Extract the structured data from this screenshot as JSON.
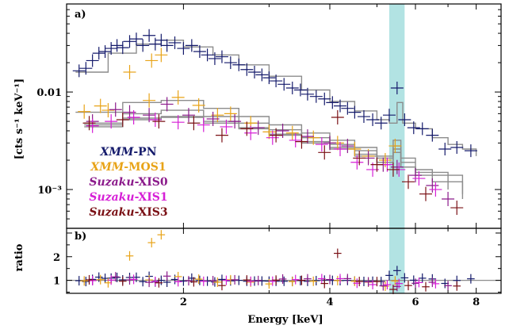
{
  "chart_data": [
    {
      "panel_label": "a)",
      "type": "scatter",
      "x_scale": "log",
      "y_scale": "log",
      "xlim": [
        1.15,
        9.0
      ],
      "ylim": [
        0.0004,
        0.08
      ],
      "ylabel": "[cts s⁻¹ keV⁻¹]",
      "ytick_labels": [
        "10⁻³",
        "0.01"
      ],
      "ytick_values": [
        0.001,
        0.01
      ],
      "highlight_band": {
        "x_range": [
          5.3,
          5.7
        ],
        "color": "#b2e3e3"
      },
      "legend": {
        "placement": "bottom-left",
        "entries": [
          {
            "mission": "XMM",
            "instrument": "-PN",
            "color": "#141a6b"
          },
          {
            "mission": "XMM",
            "instrument": "-MOS1",
            "color": "#e8a317"
          },
          {
            "mission": "Suzaku",
            "instrument": "-XIS0",
            "color": "#8b1a8b"
          },
          {
            "mission": "Suzaku",
            "instrument": "-XIS1",
            "color": "#d61fd6"
          },
          {
            "mission": "Suzaku",
            "instrument": "-XIS3",
            "color": "#7a1015"
          }
        ]
      },
      "series": [
        {
          "color": "#141a6b",
          "points": [
            [
              1.22,
              0.0165
            ],
            [
              1.26,
              0.0175
            ],
            [
              1.3,
              0.021
            ],
            [
              1.34,
              0.025
            ],
            [
              1.38,
              0.026
            ],
            [
              1.42,
              0.028
            ],
            [
              1.46,
              0.03
            ],
            [
              1.5,
              0.0285
            ],
            [
              1.55,
              0.033
            ],
            [
              1.6,
              0.035
            ],
            [
              1.65,
              0.03
            ],
            [
              1.7,
              0.038
            ],
            [
              1.75,
              0.031
            ],
            [
              1.8,
              0.034
            ],
            [
              1.85,
              0.03
            ],
            [
              1.92,
              0.032
            ],
            [
              2.0,
              0.028
            ],
            [
              2.08,
              0.03
            ],
            [
              2.16,
              0.026
            ],
            [
              2.24,
              0.024
            ],
            [
              2.32,
              0.022
            ],
            [
              2.4,
              0.023
            ],
            [
              2.5,
              0.02
            ],
            [
              2.6,
              0.019
            ],
            [
              2.7,
              0.017
            ],
            [
              2.8,
              0.016
            ],
            [
              2.9,
              0.015
            ],
            [
              3.0,
              0.014
            ],
            [
              3.1,
              0.013
            ],
            [
              3.22,
              0.012
            ],
            [
              3.35,
              0.011
            ],
            [
              3.48,
              0.0105
            ],
            [
              3.6,
              0.0095
            ],
            [
              3.75,
              0.009
            ],
            [
              3.9,
              0.0085
            ],
            [
              4.05,
              0.0078
            ],
            [
              4.2,
              0.0072
            ],
            [
              4.35,
              0.0068
            ],
            [
              4.5,
              0.0062
            ],
            [
              4.7,
              0.0056
            ],
            [
              4.9,
              0.0052
            ],
            [
              5.1,
              0.0048
            ],
            [
              5.3,
              0.0058
            ],
            [
              5.5,
              0.011
            ],
            [
              5.7,
              0.0052
            ],
            [
              5.95,
              0.0043
            ],
            [
              6.2,
              0.0042
            ],
            [
              6.5,
              0.0036
            ],
            [
              6.9,
              0.0026
            ],
            [
              7.3,
              0.0027
            ],
            [
              7.8,
              0.0025
            ]
          ],
          "model": [
            [
              1.2,
              0.016
            ],
            [
              1.4,
              0.025
            ],
            [
              1.6,
              0.031
            ],
            [
              1.8,
              0.034
            ],
            [
              2.0,
              0.029
            ],
            [
              2.3,
              0.024
            ],
            [
              2.6,
              0.019
            ],
            [
              3.0,
              0.0145
            ],
            [
              3.5,
              0.0105
            ],
            [
              4.0,
              0.008
            ],
            [
              4.5,
              0.0064
            ],
            [
              5.0,
              0.0052
            ],
            [
              5.3,
              0.0048
            ],
            [
              5.5,
              0.0078
            ],
            [
              5.65,
              0.0048
            ],
            [
              6.0,
              0.0042
            ],
            [
              6.5,
              0.0034
            ],
            [
              7.0,
              0.0029
            ],
            [
              7.5,
              0.0026
            ],
            [
              8.0,
              0.0022
            ]
          ]
        },
        {
          "color": "#e8a317",
          "points": [
            [
              1.25,
              0.0063
            ],
            [
              1.35,
              0.0072
            ],
            [
              1.4,
              0.0065
            ],
            [
              1.55,
              0.016
            ],
            [
              1.7,
              0.0082
            ],
            [
              1.72,
              0.021
            ],
            [
              1.8,
              0.024
            ],
            [
              1.95,
              0.0088
            ],
            [
              2.15,
              0.0073
            ],
            [
              2.35,
              0.0058
            ],
            [
              2.5,
              0.006
            ],
            [
              2.75,
              0.0048
            ],
            [
              3.0,
              0.0039
            ],
            [
              3.35,
              0.0038
            ],
            [
              3.7,
              0.0034
            ],
            [
              4.15,
              0.003
            ],
            [
              4.5,
              0.0026
            ],
            [
              4.8,
              0.0022
            ],
            [
              5.2,
              0.002
            ],
            [
              5.45,
              0.0028
            ]
          ],
          "model": [
            [
              1.2,
              0.0062
            ],
            [
              1.5,
              0.0078
            ],
            [
              1.8,
              0.0082
            ],
            [
              2.2,
              0.0068
            ],
            [
              2.6,
              0.0056
            ],
            [
              3.0,
              0.0046
            ],
            [
              3.5,
              0.0038
            ],
            [
              4.0,
              0.0032
            ],
            [
              4.5,
              0.0027
            ],
            [
              5.0,
              0.0022
            ],
            [
              5.4,
              0.0032
            ],
            [
              5.6,
              0.0021
            ],
            [
              6.0,
              0.0019
            ]
          ]
        },
        {
          "color": "#8b1a8b",
          "points": [
            [
              1.3,
              0.005
            ],
            [
              1.45,
              0.0066
            ],
            [
              1.55,
              0.0062
            ],
            [
              1.7,
              0.0058
            ],
            [
              1.85,
              0.0075
            ],
            [
              2.05,
              0.0058
            ],
            [
              2.3,
              0.0053
            ],
            [
              2.55,
              0.005
            ],
            [
              2.85,
              0.0043
            ],
            [
              3.2,
              0.004
            ],
            [
              3.6,
              0.0035
            ],
            [
              4.0,
              0.003
            ],
            [
              4.35,
              0.0028
            ],
            [
              4.8,
              0.0021
            ],
            [
              5.15,
              0.0018
            ],
            [
              5.5,
              0.0017
            ],
            [
              6.0,
              0.0014
            ],
            [
              6.5,
              0.0011
            ],
            [
              7.0,
              0.0008
            ]
          ],
          "model": [
            [
              1.25,
              0.0048
            ],
            [
              1.5,
              0.006
            ],
            [
              1.8,
              0.0065
            ],
            [
              2.2,
              0.0056
            ],
            [
              2.6,
              0.0048
            ],
            [
              3.0,
              0.0041
            ],
            [
              3.5,
              0.0034
            ],
            [
              4.0,
              0.0029
            ],
            [
              4.5,
              0.0025
            ],
            [
              5.0,
              0.0021
            ],
            [
              5.4,
              0.0028
            ],
            [
              5.6,
              0.0019
            ],
            [
              6.0,
              0.0016
            ],
            [
              6.5,
              0.0012
            ],
            [
              7.5,
              0.0009
            ]
          ]
        },
        {
          "color": "#d61fd6",
          "points": [
            [
              1.3,
              0.0045
            ],
            [
              1.42,
              0.005
            ],
            [
              1.58,
              0.0055
            ],
            [
              1.75,
              0.0052
            ],
            [
              1.95,
              0.0049
            ],
            [
              2.2,
              0.0046
            ],
            [
              2.45,
              0.0044
            ],
            [
              2.75,
              0.0038
            ],
            [
              3.05,
              0.0034
            ],
            [
              3.4,
              0.0032
            ],
            [
              3.85,
              0.0029
            ],
            [
              4.2,
              0.0026
            ],
            [
              4.55,
              0.0019
            ],
            [
              4.9,
              0.0016
            ],
            [
              5.25,
              0.0018
            ],
            [
              5.55,
              0.0016
            ],
            [
              6.1,
              0.0013
            ],
            [
              6.6,
              0.001
            ]
          ],
          "model": [
            [
              1.25,
              0.0044
            ],
            [
              1.5,
              0.0052
            ],
            [
              1.8,
              0.0055
            ],
            [
              2.2,
              0.0048
            ],
            [
              2.6,
              0.0042
            ],
            [
              3.0,
              0.0036
            ],
            [
              3.5,
              0.003
            ],
            [
              4.0,
              0.0026
            ],
            [
              4.5,
              0.0022
            ],
            [
              5.0,
              0.0019
            ],
            [
              5.4,
              0.0024
            ],
            [
              5.6,
              0.0017
            ],
            [
              6.0,
              0.0015
            ],
            [
              7.0,
              0.001
            ]
          ]
        },
        {
          "color": "#7a1015",
          "points": [
            [
              1.28,
              0.0048
            ],
            [
              1.5,
              0.0052
            ],
            [
              1.78,
              0.005
            ],
            [
              2.1,
              0.0048
            ],
            [
              2.4,
              0.0036
            ],
            [
              2.7,
              0.0042
            ],
            [
              3.1,
              0.0036
            ],
            [
              3.5,
              0.0031
            ],
            [
              3.9,
              0.0024
            ],
            [
              4.15,
              0.0055
            ],
            [
              4.6,
              0.0021
            ],
            [
              5.0,
              0.0018
            ],
            [
              5.4,
              0.0016
            ],
            [
              5.8,
              0.0012
            ],
            [
              6.3,
              0.0009
            ],
            [
              7.3,
              0.00065
            ]
          ],
          "model": [
            [
              1.25,
              0.0046
            ],
            [
              1.5,
              0.0054
            ],
            [
              1.8,
              0.0056
            ],
            [
              2.2,
              0.005
            ],
            [
              2.6,
              0.0043
            ],
            [
              3.0,
              0.0037
            ],
            [
              3.5,
              0.0031
            ],
            [
              4.0,
              0.0027
            ],
            [
              4.5,
              0.0023
            ],
            [
              5.0,
              0.0019
            ],
            [
              5.4,
              0.0026
            ],
            [
              5.6,
              0.0017
            ],
            [
              6.0,
              0.0014
            ],
            [
              7.5,
              0.0008
            ]
          ]
        }
      ]
    },
    {
      "panel_label": "b)",
      "type": "scatter",
      "x_scale": "log",
      "xlim": [
        1.15,
        9.0
      ],
      "ylim": [
        0.45,
        3.2
      ],
      "xlabel": "Energy [keV]",
      "ylabel": "ratio",
      "xtick_labels": [
        "2",
        "4",
        "6",
        "8"
      ],
      "xtick_values": [
        2,
        4,
        6,
        8
      ],
      "ytick_labels": [
        "1",
        "2"
      ],
      "ytick_values": [
        1,
        2
      ],
      "reference_line": 1.0
    }
  ]
}
